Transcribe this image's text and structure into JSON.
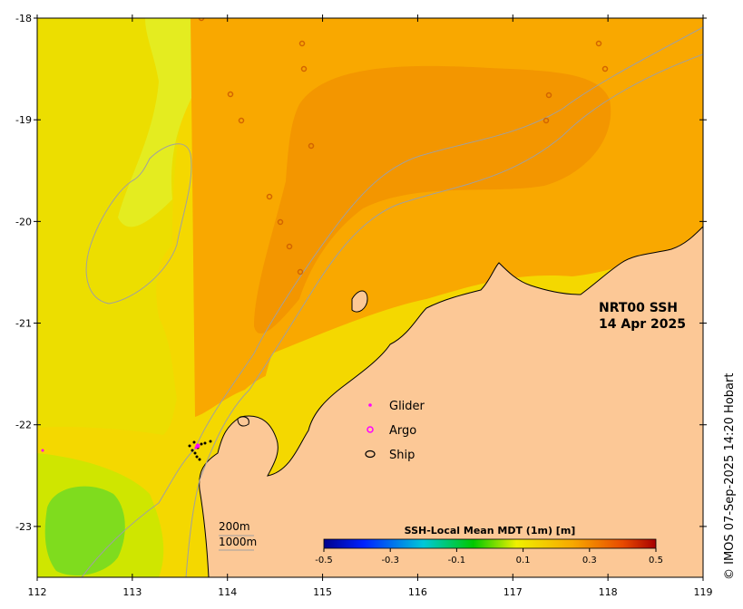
{
  "map": {
    "title_line1": "NRT00 SSH",
    "title_line2": "14 Apr 2025",
    "credit": "© IMOS 07-Sep-2025 14:20 Hobart",
    "xaxis": {
      "ticks": [
        112,
        113,
        114,
        115,
        116,
        117,
        118,
        119
      ],
      "range": [
        112,
        119
      ]
    },
    "yaxis": {
      "ticks": [
        -18,
        -19,
        -20,
        -21,
        -22,
        -23
      ],
      "range": [
        -23.5,
        -18
      ]
    },
    "legend": [
      {
        "label": "Glider",
        "symbol": "dot",
        "color": "#ff00ff"
      },
      {
        "label": "Argo",
        "symbol": "circle",
        "color": "#ff00ff"
      },
      {
        "label": "Ship",
        "symbol": "ellipse",
        "color": "#000000"
      }
    ],
    "colorbar": {
      "title": "SSH-Local Mean MDT (1m) [m]",
      "range": [
        -0.5,
        0.5
      ],
      "ticks": [
        "-0.5",
        "-0.3",
        "-0.1",
        "0.1",
        "0.3",
        "0.5"
      ]
    },
    "scale": {
      "depth1": "200m",
      "depth2": "1000m"
    },
    "colors": {
      "land": "#fcc896",
      "ssh_low": "#66dd22",
      "ssh_mid": "#f4d800",
      "ssh_high": "#f9a800",
      "ssh_peak": "#f08c00"
    }
  }
}
